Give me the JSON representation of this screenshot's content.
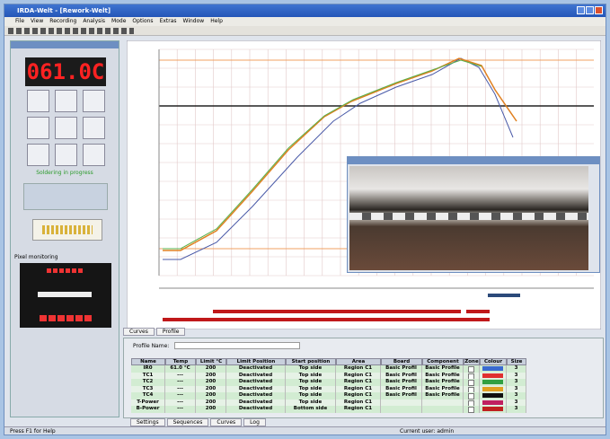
{
  "window": {
    "title": "IRDA-Welt - [Rework-Welt]"
  },
  "menu": [
    "File",
    "View",
    "Recording",
    "Analysis",
    "Mode",
    "Options",
    "Extras",
    "Window",
    "Help"
  ],
  "display": {
    "value": "061.0C",
    "status": "Soldering in progress",
    "pixel_label": "Pixel monitoring"
  },
  "chart_tabs": [
    "Curves",
    "Profile"
  ],
  "profile": {
    "label": "Profile Name:"
  },
  "table": {
    "headers": [
      "Name",
      "Temp",
      "Limit °C",
      "Limit Position",
      "Start position",
      "Area",
      "Board",
      "Component",
      "Zone",
      "Colour",
      "Size"
    ],
    "rows": [
      [
        "IR0",
        "61.0 °C",
        "200",
        "Deactivated",
        "Top side",
        "Region C1",
        "Basic Profil",
        "Basic Profile",
        "3"
      ],
      [
        "TC1",
        "---",
        "200",
        "Deactivated",
        "Top side",
        "Region C1",
        "Basic Profil",
        "Basic Profile",
        "3"
      ],
      [
        "TC2",
        "---",
        "200",
        "Deactivated",
        "Top side",
        "Region C1",
        "Basic Profil",
        "Basic Profile",
        "3"
      ],
      [
        "TC3",
        "---",
        "200",
        "Deactivated",
        "Top side",
        "Region C1",
        "Basic Profil",
        "Basic Profile",
        "3"
      ],
      [
        "TC4",
        "---",
        "200",
        "Deactivated",
        "Top side",
        "Region C1",
        "Basic Profil",
        "Basic Profile",
        "3"
      ],
      [
        "T-Power",
        "---",
        "200",
        "Deactivated",
        "Top side",
        "Region C1",
        "",
        "",
        "3"
      ],
      [
        "B-Power",
        "---",
        "200",
        "Deactivated",
        "Bottom side",
        "Region C1",
        "",
        "",
        "3"
      ]
    ]
  },
  "bottom_tabs": [
    "Settings",
    "Sequences",
    "Curves",
    "Log"
  ],
  "status": {
    "left": "Press F1 for Help",
    "right": "Current user: admin"
  }
}
